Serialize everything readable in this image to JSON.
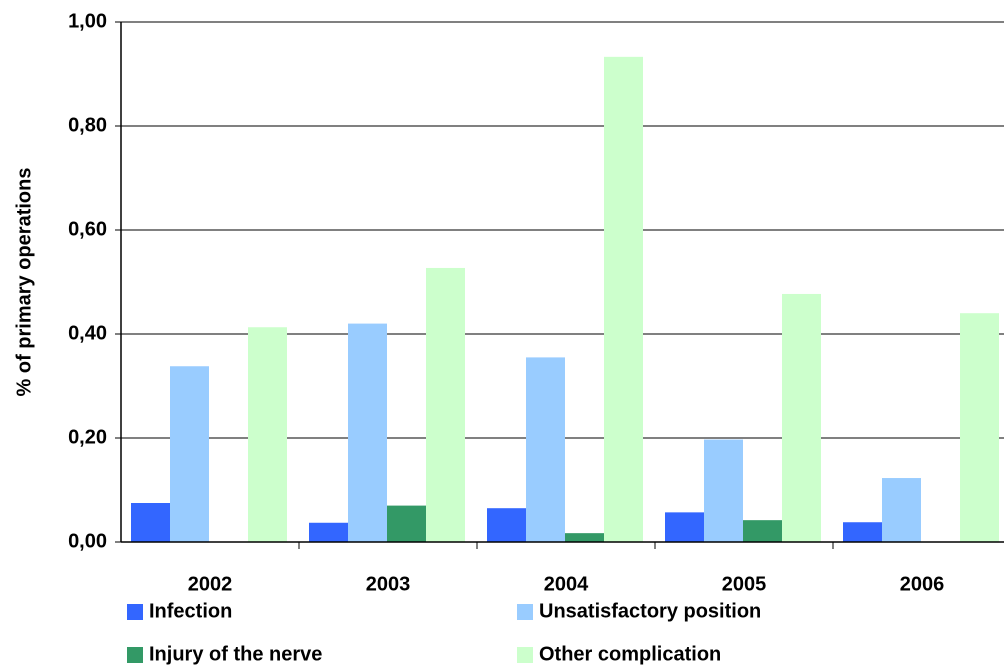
{
  "chart_data": {
    "type": "bar",
    "y_label": "% of primary operations",
    "categories": [
      "2002",
      "2003",
      "2004",
      "2005",
      "2006"
    ],
    "series": [
      {
        "name": "Infection",
        "color": "#3366ff",
        "values": [
          0.075,
          0.037,
          0.065,
          0.057,
          0.038
        ]
      },
      {
        "name": "Unsatisfactory position",
        "color": "#99ccff",
        "values": [
          0.338,
          0.42,
          0.355,
          0.197,
          0.123
        ]
      },
      {
        "name": "Injury of the nerve",
        "color": "#339966",
        "values": [
          0,
          0.07,
          0.017,
          0.042,
          0
        ]
      },
      {
        "name": "Other complication",
        "color": "#ccffcc",
        "values": [
          0.413,
          0.527,
          0.933,
          0.477,
          0.44
        ]
      }
    ],
    "ylim": [
      0,
      1
    ],
    "yticks": [
      {
        "value": 0,
        "label": "0,00"
      },
      {
        "value": 0.2,
        "label": "0,20"
      },
      {
        "value": 0.4,
        "label": "0,40"
      },
      {
        "value": 0.6,
        "label": "0,60"
      },
      {
        "value": 0.8,
        "label": "0,80"
      },
      {
        "value": 1,
        "label": "1,00"
      }
    ],
    "grid": true
  }
}
